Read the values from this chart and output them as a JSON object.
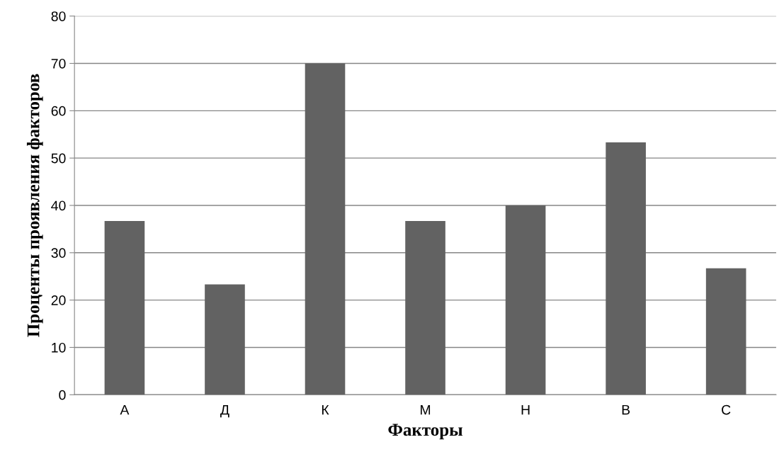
{
  "chart_data": {
    "type": "bar",
    "xlabel": "Факторы",
    "ylabel": "Проценты проявления факторов",
    "categories": [
      "А",
      "Д",
      "К",
      "М",
      "Н",
      "В",
      "С"
    ],
    "values": [
      36.7,
      23.3,
      70,
      36.7,
      40,
      53.3,
      26.7
    ],
    "color": "#626262",
    "ylim": [
      0,
      80
    ],
    "yticks": [
      0,
      10,
      20,
      30,
      40,
      50,
      60,
      70,
      80
    ],
    "grid": "y"
  }
}
